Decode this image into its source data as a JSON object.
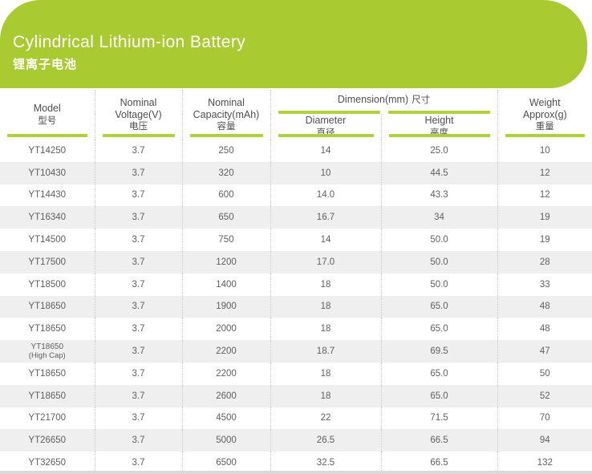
{
  "banner": {
    "title": "Cylindrical Lithium-ion Battery",
    "subtitle": "锂离子电池"
  },
  "table": {
    "headers": {
      "model": {
        "en": [
          "Model"
        ],
        "zh": "型号"
      },
      "voltage": {
        "en": [
          "Nominal",
          "Voltage(V)"
        ],
        "zh": "电压"
      },
      "capacity": {
        "en": [
          "Nominal",
          "Capacity(mAh)"
        ],
        "zh": "容量"
      },
      "dimension": {
        "en": "Dimension(mm)",
        "zh": "尺寸"
      },
      "diameter": {
        "en": "Diameter",
        "zh": "直径"
      },
      "height": {
        "en": "Height",
        "zh": "高度"
      },
      "weight": {
        "en": [
          "Weight",
          "Approx(g)"
        ],
        "zh": "重量"
      }
    },
    "rows": [
      {
        "model": "YT14250",
        "voltage": "3.7",
        "capacity": "250",
        "diameter": "14",
        "height": "25.0",
        "weight": "10"
      },
      {
        "model": "YT10430",
        "voltage": "3.7",
        "capacity": "320",
        "diameter": "10",
        "height": "44.5",
        "weight": "12"
      },
      {
        "model": "YT14430",
        "voltage": "3.7",
        "capacity": "600",
        "diameter": "14.0",
        "height": "43.3",
        "weight": "12"
      },
      {
        "model": "YT16340",
        "voltage": "3.7",
        "capacity": "650",
        "diameter": "16.7",
        "height": "34",
        "weight": "19"
      },
      {
        "model": "YT14500",
        "voltage": "3.7",
        "capacity": "750",
        "diameter": "14",
        "height": "50.0",
        "weight": "19"
      },
      {
        "model": "YT17500",
        "voltage": "3.7",
        "capacity": "1200",
        "diameter": "17.0",
        "height": "50.0",
        "weight": "28"
      },
      {
        "model": "YT18500",
        "voltage": "3.7",
        "capacity": "1400",
        "diameter": "18",
        "height": "50.0",
        "weight": "33"
      },
      {
        "model": "YT18650",
        "voltage": "3.7",
        "capacity": "1900",
        "diameter": "18",
        "height": "65.0",
        "weight": "48"
      },
      {
        "model": "YT18650",
        "voltage": "3.7",
        "capacity": "2000",
        "diameter": "18",
        "height": "65.0",
        "weight": "48"
      },
      {
        "model": "YT18650",
        "note": "(High Cap)",
        "voltage": "3.7",
        "capacity": "2200",
        "diameter": "18.7",
        "height": "69.5",
        "weight": "47"
      },
      {
        "model": "YT18650",
        "voltage": "3.7",
        "capacity": "2200",
        "diameter": "18",
        "height": "65.0",
        "weight": "50"
      },
      {
        "model": "YT18650",
        "voltage": "3.7",
        "capacity": "2600",
        "diameter": "18",
        "height": "65.0",
        "weight": "52"
      },
      {
        "model": "YT21700",
        "voltage": "3.7",
        "capacity": "4500",
        "diameter": "22",
        "height": "71.5",
        "weight": "70"
      },
      {
        "model": "YT26650",
        "voltage": "3.7",
        "capacity": "5000",
        "diameter": "26.5",
        "height": "66.5",
        "weight": "94"
      },
      {
        "model": "YT32650",
        "voltage": "3.7",
        "capacity": "6500",
        "diameter": "32.5",
        "height": "66.5",
        "weight": "132"
      }
    ]
  },
  "colors": {
    "banner_green": "#a9ca30",
    "underline_green": "#aed23a",
    "row_stripe": "#efefef",
    "divider": "#c9c9c9",
    "bottom_strip": "#dadada"
  }
}
